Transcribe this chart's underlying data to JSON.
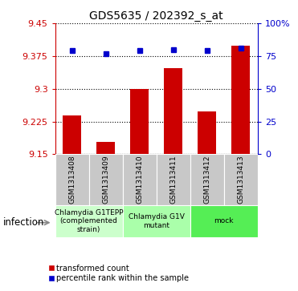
{
  "title": "GDS5635 / 202392_s_at",
  "samples": [
    "GSM1313408",
    "GSM1313409",
    "GSM1313410",
    "GSM1313411",
    "GSM1313412",
    "GSM1313413"
  ],
  "bar_values": [
    9.238,
    9.178,
    9.3,
    9.348,
    9.248,
    9.398
  ],
  "percentile_values": [
    79,
    77,
    79,
    80,
    79,
    81
  ],
  "ylim_left": [
    9.15,
    9.45
  ],
  "yticks_left": [
    9.15,
    9.225,
    9.3,
    9.375,
    9.45
  ],
  "ytick_labels_left": [
    "9.15",
    "9.225",
    "9.3",
    "9.375",
    "9.45"
  ],
  "ylim_right": [
    0,
    100
  ],
  "yticks_right": [
    0,
    25,
    50,
    75,
    100
  ],
  "ytick_labels_right": [
    "0",
    "25",
    "50",
    "75",
    "100%"
  ],
  "bar_color": "#CC0000",
  "dot_color": "#0000CC",
  "grid_color": "#000000",
  "groups": [
    {
      "label": "Chlamydia G1TEPP\n(complemented\nstrain)",
      "indices": [
        0,
        1
      ],
      "color": "#ccffcc"
    },
    {
      "label": "Chlamydia G1V\nmutant",
      "indices": [
        2,
        3
      ],
      "color": "#aaffaa"
    },
    {
      "label": "mock",
      "indices": [
        4,
        5
      ],
      "color": "#55ee55"
    }
  ],
  "infection_label": "infection",
  "legend_bar_label": "transformed count",
  "legend_dot_label": "percentile rank within the sample",
  "left_axis_color": "#CC0000",
  "right_axis_color": "#0000CC",
  "tick_area_bg": "#c8c8c8"
}
